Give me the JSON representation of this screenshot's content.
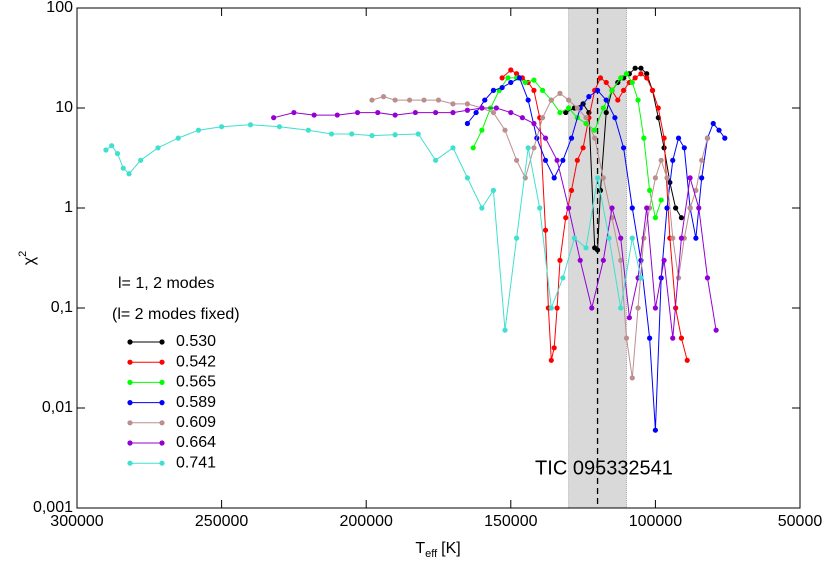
{
  "chart_data": {
    "type": "line",
    "ylog": true,
    "ylabel": "χ",
    "ylabel_sup": "2",
    "xlabel": {
      "main": "T",
      "sub": "eff",
      "unit": "[K]"
    },
    "annotation": "TIC 095332541",
    "legend_title": [
      "l= 1, 2 modes",
      "(l= 2 modes fixed)"
    ],
    "legend": "left",
    "shaded_region": [
      130000,
      110000
    ],
    "vline": 120000,
    "xlim": [
      300000,
      50000
    ],
    "xticks": [
      300000,
      250000,
      200000,
      150000,
      100000,
      50000
    ],
    "ylim": [
      0.001,
      100
    ],
    "yticks": [
      {
        "value": 0.001,
        "label": "0,001"
      },
      {
        "value": 0.01,
        "label": "0,01"
      },
      {
        "value": 0.1,
        "label": "0,1"
      },
      1,
      10,
      100
    ],
    "series": [
      {
        "name": "0.530",
        "color": "#000000",
        "x": [
          131000,
          128000,
          125000,
          123000,
          121000,
          120000,
          119000,
          117000,
          115000,
          113000,
          111000,
          109000,
          107000,
          105000,
          103000,
          101000,
          99000,
          97000,
          95000,
          93000,
          91000
        ],
        "values": [
          9,
          10,
          11,
          9,
          0.4,
          0.38,
          1.5,
          9,
          15,
          18,
          20,
          22,
          25,
          25,
          22,
          15,
          8,
          4,
          1.8,
          1,
          0.8
        ]
      },
      {
        "name": "0.542",
        "color": "#ff0000",
        "x": [
          153000,
          150000,
          148000,
          146000,
          144000,
          142000,
          140000,
          138000,
          137000,
          136000,
          135000,
          134000,
          133000,
          131000,
          129000,
          127000,
          125000,
          123000,
          121000,
          119000,
          117000,
          115000,
          113000,
          111000,
          109000,
          107000,
          105000,
          103000,
          101000,
          99000,
          97000,
          95000,
          93000,
          91000,
          89000
        ],
        "values": [
          20,
          24,
          22,
          20,
          18,
          15,
          8,
          0.6,
          0.1,
          0.03,
          0.04,
          0.1,
          0.3,
          0.8,
          1.5,
          3,
          4,
          8,
          15,
          20,
          18,
          15,
          12,
          15,
          18,
          20,
          22,
          20,
          15,
          10,
          5,
          0.5,
          0.1,
          0.05,
          0.03
        ]
      },
      {
        "name": "0.565",
        "color": "#00ff00",
        "x": [
          163000,
          160000,
          157000,
          154000,
          151000,
          148000,
          145000,
          142000,
          139000,
          136000,
          133000,
          130000,
          127000,
          124000,
          121000,
          118000,
          115000,
          112000,
          110000,
          108000,
          106000,
          104000,
          102000,
          100000,
          98000
        ],
        "values": [
          4,
          6,
          10,
          15,
          20,
          20,
          18,
          19,
          15,
          12,
          9,
          10,
          8,
          7,
          6,
          10,
          15,
          20,
          22,
          18,
          12,
          5,
          1.5,
          0.8,
          1.2
        ]
      },
      {
        "name": "0.589",
        "color": "#0000ff",
        "x": [
          165000,
          162000,
          159000,
          156000,
          153000,
          150000,
          147000,
          144000,
          141000,
          138000,
          135000,
          132000,
          129000,
          126000,
          123000,
          120000,
          117000,
          114000,
          111000,
          108000,
          105000,
          102000,
          100000,
          98000,
          96000,
          94000,
          92000,
          90000,
          88000,
          86000,
          84000,
          82000,
          80000,
          78000,
          76000
        ],
        "values": [
          7,
          9,
          12,
          15,
          16,
          18,
          20,
          12,
          5,
          3,
          2,
          3,
          5,
          10,
          13,
          15,
          12,
          8,
          4,
          1,
          0.3,
          0.05,
          0.006,
          0.2,
          1,
          3,
          5,
          4,
          1,
          0.5,
          2,
          5,
          7,
          6,
          5
        ]
      },
      {
        "name": "0.609",
        "color": "#bc8f8f",
        "x": [
          198000,
          194000,
          190000,
          185000,
          180000,
          175000,
          170000,
          165000,
          160000,
          156000,
          152000,
          148000,
          145000,
          142000,
          139000,
          136000,
          133000,
          130000,
          127000,
          124000,
          121000,
          118000,
          115000,
          112000,
          110000,
          108000,
          106000,
          104000,
          102000,
          100000,
          98000,
          96000,
          94000,
          92000,
          90000,
          88000,
          86000,
          84000,
          82000
        ],
        "values": [
          12,
          13,
          12,
          12,
          12,
          12,
          11,
          11,
          10,
          9,
          6,
          3,
          2,
          4,
          8,
          12,
          14,
          12,
          10,
          8,
          5,
          2,
          0.8,
          0.3,
          0.05,
          0.02,
          0.1,
          0.5,
          1,
          2,
          3,
          2,
          0.5,
          0.2,
          0.5,
          1,
          1.5,
          3,
          5
        ]
      },
      {
        "name": "0.664",
        "color": "#9400d3",
        "x": [
          232000,
          225000,
          218000,
          210000,
          203000,
          196000,
          190000,
          183000,
          176000,
          170000,
          165000,
          160000,
          155000,
          150000,
          146000,
          142000,
          138000,
          134000,
          130000,
          126000,
          122000,
          118000,
          115000,
          112000,
          109000,
          106000,
          103000,
          100000,
          97000,
          94000,
          91000,
          88000,
          85000,
          82000,
          79000
        ],
        "values": [
          8,
          9,
          8.5,
          8.5,
          9,
          9,
          8.5,
          9,
          9,
          9,
          9.5,
          10,
          10,
          9,
          8,
          7,
          5,
          3,
          1,
          0.3,
          0.1,
          0.3,
          1,
          0.5,
          0.08,
          0.2,
          1,
          0.1,
          0.3,
          0.05,
          0.5,
          2,
          1,
          0.2,
          0.06
        ]
      },
      {
        "name": "0.741",
        "color": "#40e0d0",
        "x": [
          290000,
          288000,
          286000,
          284000,
          282000,
          278000,
          272000,
          265000,
          258000,
          250000,
          240000,
          230000,
          220000,
          212000,
          205000,
          198000,
          190000,
          182000,
          176000,
          170000,
          165000,
          160000,
          156000,
          152000,
          148000,
          144000,
          140000,
          136000,
          132000,
          128000,
          124000,
          120000,
          116000,
          112000,
          108000,
          105000
        ],
        "values": [
          3.8,
          4.2,
          3.5,
          2.5,
          2.2,
          3,
          4,
          5,
          6,
          6.5,
          6.8,
          6.5,
          6,
          5.5,
          5.5,
          5.3,
          5.4,
          5.5,
          3,
          4,
          2,
          1,
          1.5,
          0.06,
          0.5,
          4,
          1,
          0.1,
          0.2,
          0.5,
          0.4,
          2,
          0.5,
          0.1,
          0.5,
          0.2
        ]
      }
    ]
  }
}
